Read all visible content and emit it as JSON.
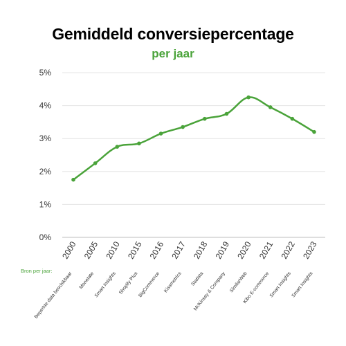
{
  "chart_data": {
    "type": "line",
    "title": "Gemiddeld conversiepercentage",
    "subtitle": "per jaar",
    "categories": [
      "2000",
      "2005",
      "2010",
      "2015",
      "2016",
      "2017",
      "2018",
      "2019",
      "2020",
      "2021",
      "2022",
      "2023"
    ],
    "series": [
      {
        "values": [
          1.75,
          2.25,
          2.75,
          2.85,
          3.15,
          3.35,
          3.6,
          3.75,
          4.25,
          3.95,
          3.6,
          3.2
        ]
      }
    ],
    "yticks": [
      "0%",
      "1%",
      "2%",
      "3%",
      "4%",
      "5%"
    ],
    "ylim": [
      0,
      5
    ],
    "grid": true,
    "source_label": "Bron per jaar:",
    "sources": [
      "Beperkte data beschikbaar",
      "Monetate",
      "Smart Insights",
      "Shopify Plus",
      "BigCommerce",
      "Kissmetrics",
      "Statista",
      "McKinsey & Company",
      "SimilarWeb",
      "Kibo E-commerce",
      "Smart Insights",
      "Smart Insights"
    ]
  },
  "colors": {
    "accent": "#4aa33a",
    "grid": "#e4e4e4",
    "axis_text": "#333333"
  }
}
